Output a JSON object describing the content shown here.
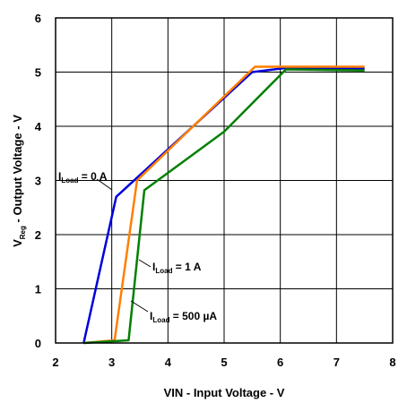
{
  "chart_data": {
    "type": "line",
    "title": "",
    "xlabel": "VIN - Input Voltage - V",
    "ylabel_main": "V",
    "ylabel_sub": "Reg",
    "ylabel_rest": " - Output Voltage - V",
    "xlim": [
      2,
      8
    ],
    "ylim": [
      0,
      6
    ],
    "xticks": [
      "2",
      "3",
      "4",
      "5",
      "6",
      "7",
      "8"
    ],
    "yticks": [
      "0",
      "1",
      "2",
      "3",
      "4",
      "5",
      "6"
    ],
    "grid": true,
    "legend": "none (inline annotations)",
    "series": [
      {
        "name": "I_Load = 0 A",
        "label_main": "I",
        "label_sub": "Load",
        "label_rest": " = 0 A",
        "color": "#0000dd",
        "x": [
          2.5,
          3.08,
          3.45,
          5.5,
          6.05,
          7.5
        ],
        "y": [
          0.0,
          2.7,
          3.05,
          5.0,
          5.07,
          5.07
        ]
      },
      {
        "name": "I_Load = 1 A",
        "label_main": "I",
        "label_sub": "Load",
        "label_rest": " = 1 A",
        "color": "#ff7f00",
        "x": [
          2.5,
          3.05,
          3.45,
          5.55,
          6.0,
          7.5
        ],
        "y": [
          0.0,
          0.05,
          3.0,
          5.1,
          5.1,
          5.1
        ]
      },
      {
        "name": "I_Load = 500 µA",
        "label_main": "I",
        "label_sub": "Load",
        "label_rest": " = 500 µA",
        "color": "#008000",
        "x": [
          2.5,
          3.3,
          3.58,
          5.0,
          6.1,
          7.5
        ],
        "y": [
          0.0,
          0.05,
          2.82,
          3.9,
          5.05,
          5.03
        ]
      }
    ]
  }
}
